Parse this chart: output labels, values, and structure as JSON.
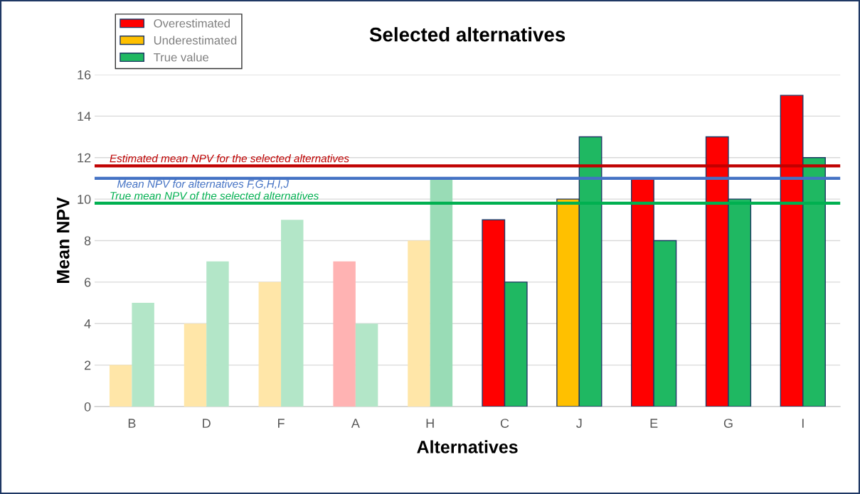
{
  "chart_data": {
    "type": "bar",
    "title": "Selected alternatives",
    "xlabel": "Alternatives",
    "ylabel": "Mean NPV",
    "categories": [
      "B",
      "D",
      "F",
      "A",
      "H",
      "C",
      "J",
      "E",
      "G",
      "I"
    ],
    "series": [
      {
        "name": "Overestimated",
        "color": "#ff0000",
        "values": [
          null,
          null,
          null,
          7,
          null,
          9,
          null,
          11,
          13,
          15
        ],
        "colors": [
          null,
          null,
          null,
          "#ffb3b3",
          null,
          "#ff0000",
          null,
          "#ff0000",
          "#ff0000",
          "#ff0000"
        ]
      },
      {
        "name": "Underestimated",
        "color": "#ffc000",
        "values": [
          2,
          4,
          6,
          null,
          8,
          null,
          10,
          null,
          null,
          null
        ],
        "colors": [
          "#ffe6a8",
          "#ffe6a8",
          "#ffe6a8",
          null,
          "#ffe6a8",
          null,
          "#ffc000",
          null,
          null,
          null
        ]
      },
      {
        "name": "True value",
        "color": "#1fb862",
        "values": [
          5,
          7,
          9,
          4,
          11,
          6,
          13,
          8,
          10,
          12
        ],
        "colors": [
          "#b3e6c8",
          "#b3e6c8",
          "#b3e6c8",
          "#b3e6c8",
          "#99dcb6",
          "#1fb862",
          "#1fb862",
          "#1fb862",
          "#1fb862",
          "#1fb862"
        ]
      }
    ],
    "ylim": [
      0,
      16
    ],
    "yticks": [
      0,
      2,
      4,
      6,
      8,
      10,
      12,
      14,
      16
    ],
    "grid": "y",
    "legend": "top left",
    "ref_lines": [
      {
        "axis": "y",
        "value": 11.6,
        "label": "Estimated mean NPV for the selected alternatives",
        "color": "#c00000"
      },
      {
        "axis": "y",
        "value": 11,
        "label": "Mean NPV for alternatives F,G,H,I,J",
        "color": "#4472c4"
      },
      {
        "axis": "y",
        "value": 9.8,
        "label": "True mean NPV of the selected alternatives",
        "color": "#00b050"
      }
    ]
  }
}
